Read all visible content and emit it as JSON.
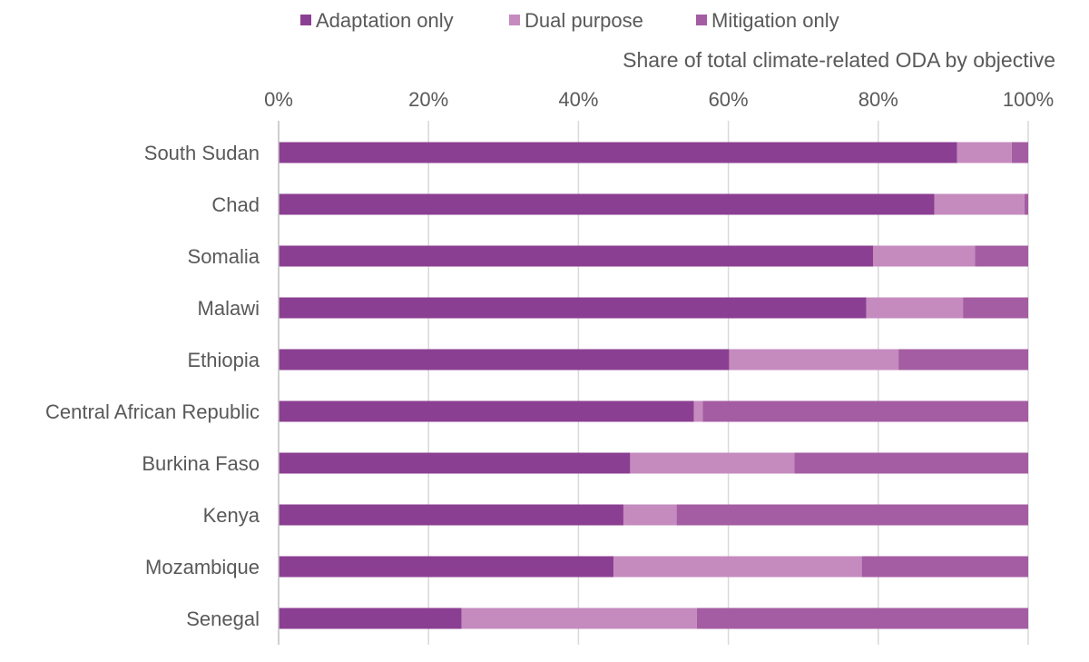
{
  "chart_data": {
    "type": "bar",
    "orientation": "horizontal",
    "stacked": true,
    "title": "",
    "xlabel": "Share of total climate-related ODA by objective",
    "ylabel": "",
    "xlim": [
      0,
      100
    ],
    "x_ticks": [
      "0%",
      "20%",
      "40%",
      "60%",
      "80%",
      "100%"
    ],
    "x_tick_values": [
      0,
      20,
      40,
      60,
      80,
      100
    ],
    "grid": "vertical",
    "legend_position": "top",
    "categories": [
      "South Sudan",
      "Chad",
      "Somalia",
      "Malawi",
      "Ethiopia",
      "Central African Republic",
      "Burkina Faso",
      "Kenya",
      "Mozambique",
      "Senegal"
    ],
    "series": [
      {
        "name": "Adaptation only",
        "color": "#8b3f92",
        "values": [
          90.5,
          87.5,
          79.3,
          78.4,
          60.1,
          55.4,
          46.9,
          46.0,
          44.7,
          24.4
        ]
      },
      {
        "name": "Dual purpose",
        "color": "#c58bbf",
        "values": [
          7.3,
          12.0,
          13.6,
          12.9,
          22.6,
          1.2,
          21.9,
          7.1,
          33.1,
          31.4
        ]
      },
      {
        "name": "Mitigation only",
        "color": "#a45da2",
        "values": [
          2.2,
          0.5,
          7.1,
          8.7,
          17.3,
          43.4,
          31.2,
          46.9,
          22.2,
          44.2
        ]
      }
    ]
  }
}
